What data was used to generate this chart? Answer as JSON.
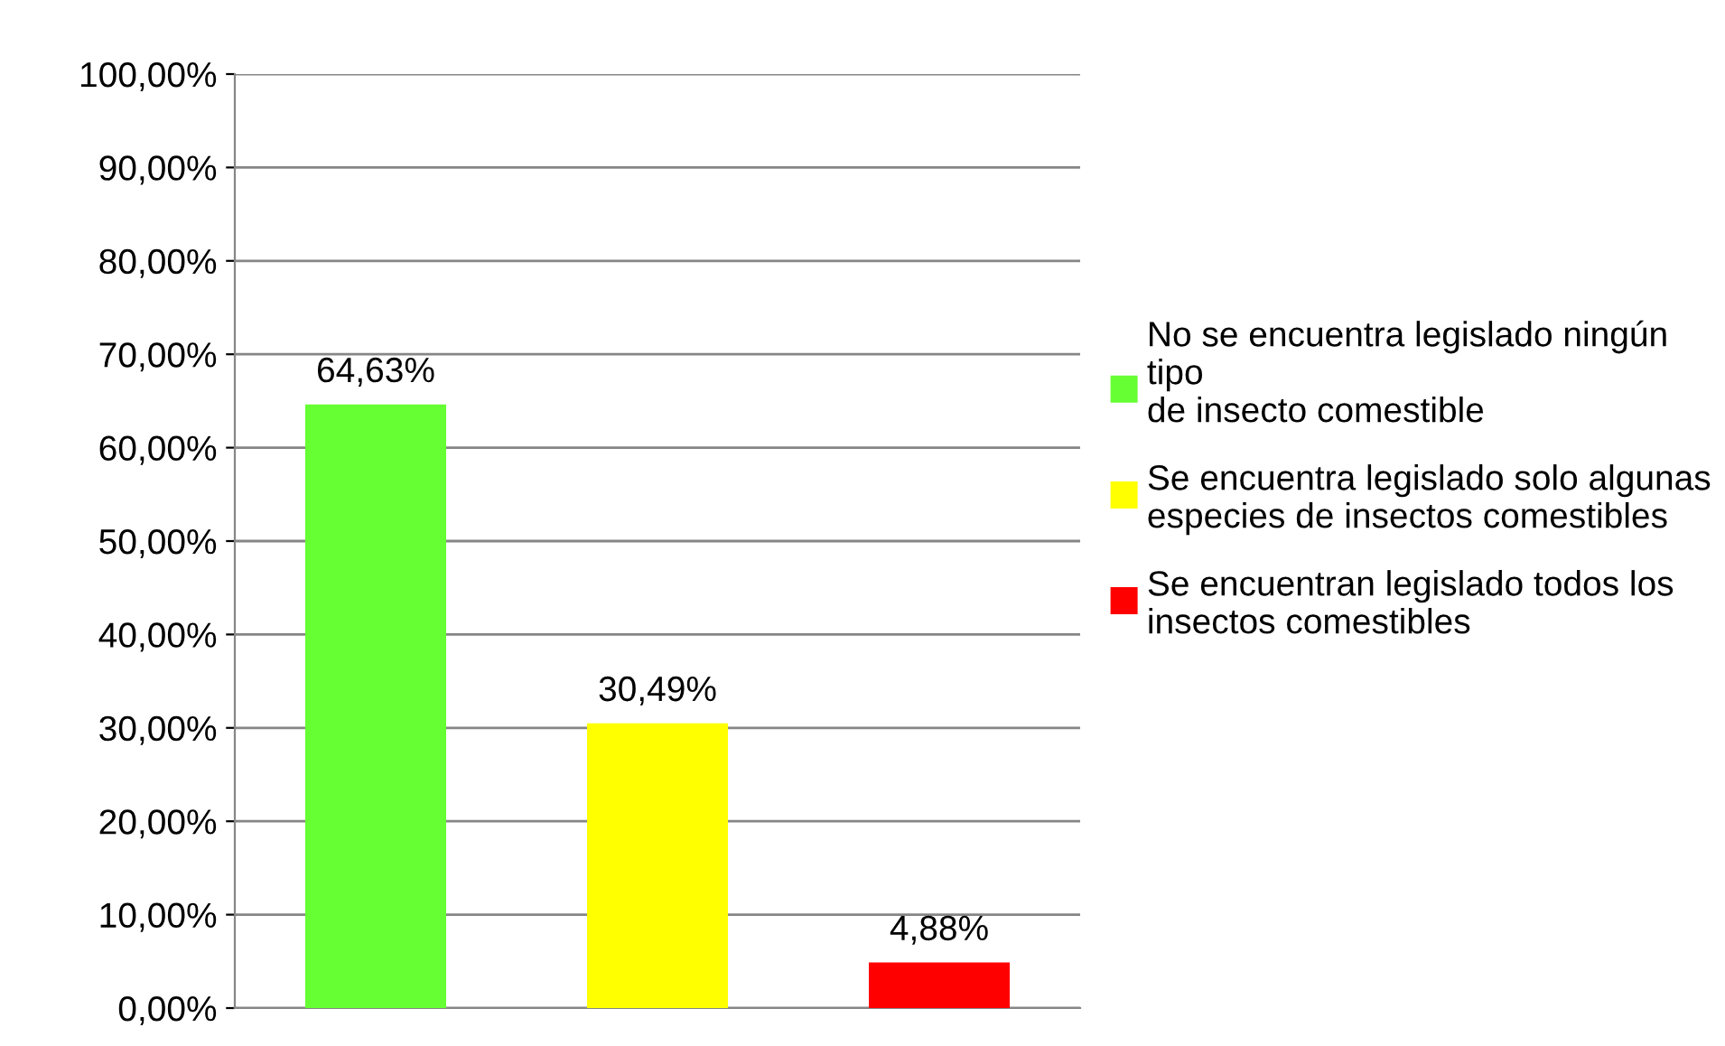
{
  "chart_data": {
    "type": "bar",
    "categories": [
      null,
      null,
      null
    ],
    "series": [
      {
        "name": "No se encuentra legislado ningún tipo de insecto comestible",
        "color": "#66ff33",
        "values": [
          64.63,
          null,
          null
        ],
        "value_labels": [
          "64,63%",
          null,
          null
        ]
      },
      {
        "name": "Se encuentra legislado solo algunas especies de insectos comestibles",
        "color": "#ffff00",
        "values": [
          null,
          30.49,
          null
        ],
        "value_labels": [
          null,
          "30,49%",
          null
        ]
      },
      {
        "name": "Se encuentran legislado todos los insectos comestibles",
        "color": "#ff0000",
        "values": [
          null,
          null,
          4.88
        ],
        "value_labels": [
          null,
          null,
          "4,88%"
        ]
      }
    ],
    "ylim": [
      0,
      100
    ],
    "yticks": [
      {
        "value": 0,
        "label": "0,00%"
      },
      {
        "value": 10,
        "label": "10,00%"
      },
      {
        "value": 20,
        "label": "20,00%"
      },
      {
        "value": 30,
        "label": "30,00%"
      },
      {
        "value": 40,
        "label": "40,00%"
      },
      {
        "value": 50,
        "label": "50,00%"
      },
      {
        "value": 60,
        "label": "60,00%"
      },
      {
        "value": 70,
        "label": "70,00%"
      },
      {
        "value": 80,
        "label": "80,00%"
      },
      {
        "value": 90,
        "label": "90,00%"
      },
      {
        "value": 100,
        "label": "100,00%"
      }
    ],
    "grid": "y",
    "legend": "right"
  }
}
